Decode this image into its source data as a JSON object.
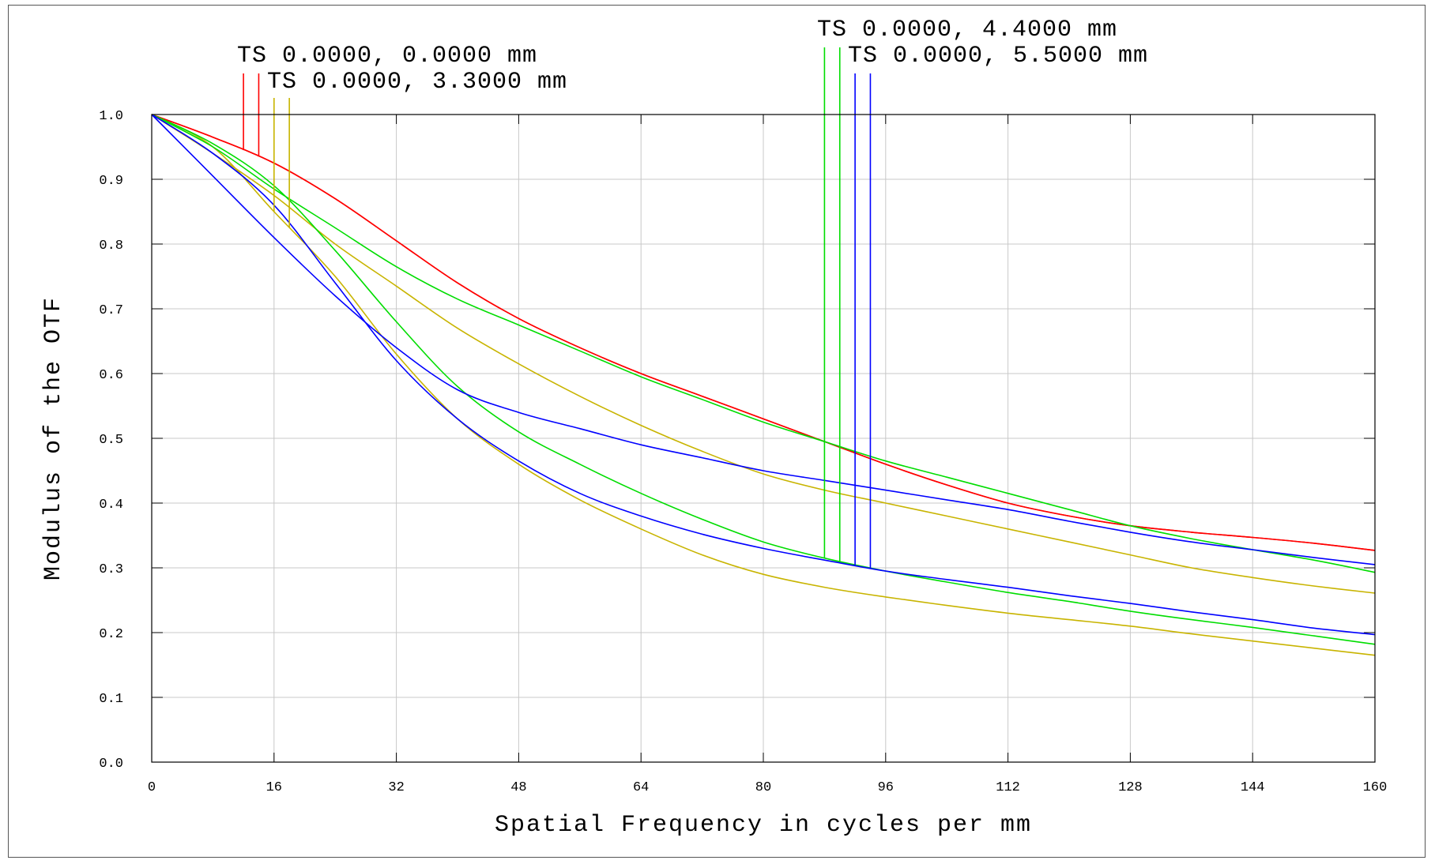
{
  "chart_data": {
    "type": "line",
    "xlabel": "Spatial Frequency in cycles per mm",
    "ylabel": "Modulus of the OTF",
    "xlim": [
      0,
      160
    ],
    "ylim": [
      0,
      1.0
    ],
    "x_ticks": [
      0,
      16,
      32,
      48,
      64,
      80,
      96,
      112,
      128,
      144,
      160
    ],
    "y_ticks": [
      0.0,
      0.1,
      0.2,
      0.3,
      0.4,
      0.5,
      0.6,
      0.7,
      0.8,
      0.9,
      1.0
    ],
    "x_tick_labels": [
      "0",
      "16",
      "32",
      "48",
      "64",
      "80",
      "96",
      "112",
      "128",
      "144",
      "160"
    ],
    "y_tick_labels": [
      "0.0",
      "0.1",
      "0.2",
      "0.3",
      "0.4",
      "0.5",
      "0.6",
      "0.7",
      "0.8",
      "0.9",
      "1.0"
    ],
    "grid": true,
    "legend": [
      {
        "label": "TS 0.0000, 0.0000 mm",
        "color": "#ff0000",
        "marker_x": [
          12,
          14
        ]
      },
      {
        "label": "TS 0.0000, 3.3000 mm",
        "color": "#c8b400",
        "marker_x": [
          16,
          18
        ]
      },
      {
        "label": "TS 0.0000, 4.4000 mm",
        "color": "#00dd00",
        "marker_x": [
          88,
          90
        ]
      },
      {
        "label": "TS 0.0000, 5.5000 mm",
        "color": "#0000ff",
        "marker_x": [
          92,
          94
        ]
      }
    ],
    "series": [
      {
        "color": "#ff0000",
        "x": [
          0,
          8,
          16,
          24,
          32,
          40,
          48,
          56,
          64,
          72,
          80,
          88,
          96,
          104,
          112,
          120,
          128,
          136,
          144,
          152,
          160
        ],
        "y": [
          1.0,
          0.965,
          0.925,
          0.87,
          0.805,
          0.74,
          0.685,
          0.64,
          0.6,
          0.565,
          0.53,
          0.495,
          0.46,
          0.428,
          0.4,
          0.38,
          0.365,
          0.355,
          0.347,
          0.338,
          0.327
        ]
      },
      {
        "color": "#ff0000",
        "x": [
          0,
          8,
          16,
          24,
          32,
          40,
          48,
          56,
          64,
          72,
          80,
          88,
          96,
          104,
          112,
          120,
          128,
          136,
          144,
          152,
          160
        ],
        "y": [
          1.0,
          0.965,
          0.925,
          0.87,
          0.805,
          0.74,
          0.685,
          0.64,
          0.6,
          0.565,
          0.53,
          0.495,
          0.46,
          0.428,
          0.4,
          0.38,
          0.365,
          0.355,
          0.347,
          0.338,
          0.327
        ]
      },
      {
        "color": "#c8b400",
        "x": [
          0,
          8,
          16,
          24,
          32,
          40,
          48,
          56,
          64,
          72,
          80,
          88,
          96,
          104,
          112,
          120,
          128,
          136,
          144,
          152,
          160
        ],
        "y": [
          1.0,
          0.94,
          0.875,
          0.8,
          0.735,
          0.67,
          0.615,
          0.565,
          0.52,
          0.48,
          0.445,
          0.42,
          0.4,
          0.38,
          0.36,
          0.34,
          0.32,
          0.3,
          0.285,
          0.272,
          0.261
        ]
      },
      {
        "color": "#c8b400",
        "x": [
          0,
          8,
          16,
          24,
          32,
          40,
          48,
          56,
          64,
          72,
          80,
          88,
          96,
          104,
          112,
          120,
          128,
          136,
          144,
          152,
          160
        ],
        "y": [
          1.0,
          0.95,
          0.85,
          0.75,
          0.63,
          0.53,
          0.46,
          0.405,
          0.36,
          0.32,
          0.29,
          0.27,
          0.255,
          0.242,
          0.23,
          0.22,
          0.21,
          0.198,
          0.187,
          0.176,
          0.165
        ]
      },
      {
        "color": "#00dd00",
        "x": [
          0,
          8,
          16,
          24,
          32,
          40,
          48,
          56,
          64,
          72,
          80,
          88,
          96,
          104,
          112,
          120,
          128,
          136,
          144,
          152,
          160
        ],
        "y": [
          1.0,
          0.95,
          0.885,
          0.825,
          0.765,
          0.715,
          0.675,
          0.635,
          0.595,
          0.56,
          0.525,
          0.495,
          0.465,
          0.44,
          0.415,
          0.39,
          0.365,
          0.345,
          0.328,
          0.312,
          0.293
        ]
      },
      {
        "color": "#00dd00",
        "x": [
          0,
          8,
          16,
          24,
          32,
          40,
          48,
          56,
          64,
          72,
          80,
          88,
          96,
          104,
          112,
          120,
          128,
          136,
          144,
          152,
          160
        ],
        "y": [
          1.0,
          0.955,
          0.89,
          0.79,
          0.68,
          0.58,
          0.51,
          0.46,
          0.415,
          0.375,
          0.34,
          0.315,
          0.295,
          0.278,
          0.262,
          0.248,
          0.233,
          0.22,
          0.208,
          0.195,
          0.182
        ]
      },
      {
        "color": "#0000ff",
        "x": [
          0,
          8,
          16,
          24,
          32,
          40,
          48,
          56,
          64,
          72,
          80,
          88,
          96,
          104,
          112,
          120,
          128,
          136,
          144,
          152,
          160
        ],
        "y": [
          1.0,
          0.905,
          0.81,
          0.72,
          0.64,
          0.575,
          0.54,
          0.515,
          0.49,
          0.47,
          0.45,
          0.435,
          0.42,
          0.405,
          0.39,
          0.372,
          0.355,
          0.34,
          0.328,
          0.316,
          0.305
        ]
      },
      {
        "color": "#0000ff",
        "x": [
          0,
          8,
          16,
          24,
          32,
          40,
          48,
          56,
          64,
          72,
          80,
          88,
          96,
          104,
          112,
          120,
          128,
          136,
          144,
          152,
          160
        ],
        "y": [
          1.0,
          0.94,
          0.86,
          0.74,
          0.62,
          0.53,
          0.465,
          0.415,
          0.38,
          0.352,
          0.33,
          0.312,
          0.295,
          0.282,
          0.27,
          0.257,
          0.245,
          0.232,
          0.22,
          0.207,
          0.197
        ]
      }
    ]
  }
}
